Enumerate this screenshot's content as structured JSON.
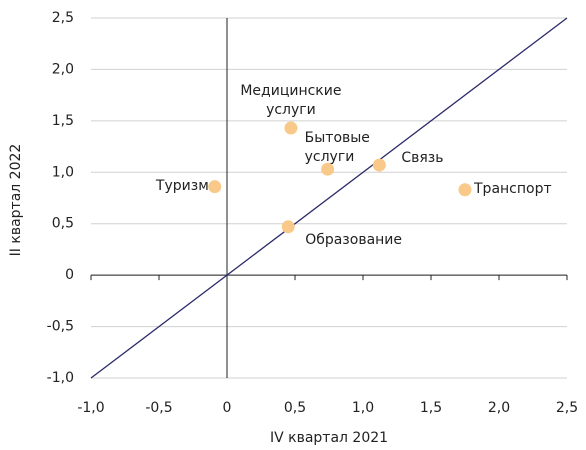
{
  "chart_data": {
    "type": "scatter",
    "x_label": "IV квартал 2021",
    "y_label": "II квартал 2022",
    "labels": [
      "Туризм",
      "Медицинские услуги",
      "Бытовые услуги",
      "Связь",
      "Транспорт",
      "Образование"
    ],
    "x": [
      -0.09,
      0.47,
      0.74,
      1.12,
      1.75,
      0.45
    ],
    "y": [
      0.86,
      1.43,
      1.03,
      1.07,
      0.83,
      0.47
    ],
    "color": "#f9c98a",
    "line_color": "#2b2a6b",
    "xlim": [
      -1.0,
      2.5
    ],
    "ylim": [
      -1.0,
      2.5
    ],
    "xticks": [
      {
        "value": -1.0,
        "label": "-1,0"
      },
      {
        "value": -0.5,
        "label": "-0,5"
      },
      0,
      {
        "value": 0.5,
        "label": "0,5"
      },
      {
        "value": 1.0,
        "label": "1,0"
      },
      {
        "value": 1.5,
        "label": "1,5"
      },
      {
        "value": 2.0,
        "label": "2,0"
      },
      {
        "value": 2.5,
        "label": "2,5"
      }
    ],
    "yticks": [
      {
        "value": -1.0,
        "label": "-1,0"
      },
      {
        "value": -0.5,
        "label": "-0,5"
      },
      0,
      {
        "value": 0.5,
        "label": "0,5"
      },
      {
        "value": 1.0,
        "label": "1,0"
      },
      {
        "value": 1.5,
        "label": "1,5"
      },
      {
        "value": 2.0,
        "label": "2,0"
      },
      {
        "value": 2.5,
        "label": "2,5"
      }
    ],
    "grid": true
  }
}
